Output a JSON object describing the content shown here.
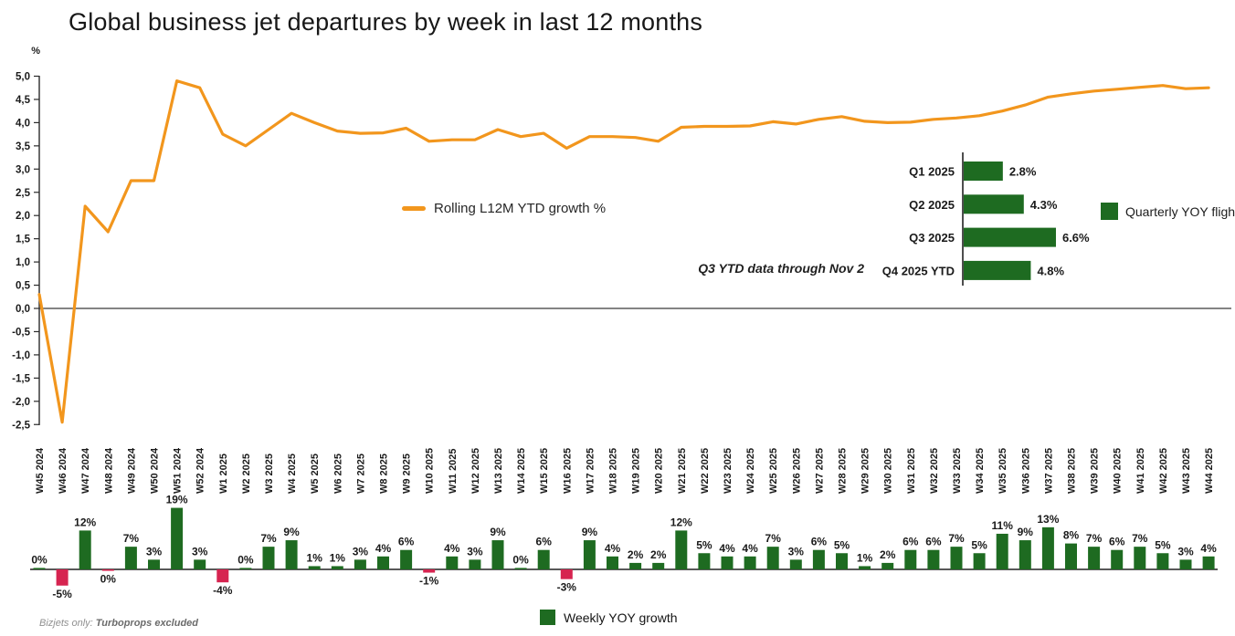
{
  "title": "Global business jet departures by week in last 12 months",
  "footer": {
    "prefix": "Bizjets only: ",
    "bold": "Turboprops excluded"
  },
  "colors": {
    "line_orange": "#F2961D",
    "bar_green": "#1E6B21",
    "bar_red": "#D62450",
    "axis": "#2a2a2a",
    "text": "#1a1a1a"
  },
  "chart_data": [
    {
      "type": "line",
      "title": "Global business jet departures by week in last 12 months",
      "legend": "Rolling L12M YTD growth %",
      "ylabel": "%",
      "ylim": [
        -2.5,
        5.0
      ],
      "ytick_step": 0.5,
      "ytick_labels": [
        "5,0",
        "4,5",
        "4,0",
        "3,5",
        "3,0",
        "2,5",
        "2,0",
        "1,5",
        "1,0",
        "0,5",
        "0,0",
        "-0,5",
        "-1,0",
        "-1,5",
        "-2,0",
        "-2,5"
      ],
      "grid": "zero-line-only",
      "x": [
        "W45 2024",
        "W46 2024",
        "W47 2024",
        "W48 2024",
        "W49 2024",
        "W50 2024",
        "W51 2024",
        "W52 2024",
        "W1 2025",
        "W2 2025",
        "W3 2025",
        "W4 2025",
        "W5 2025",
        "W6 2025",
        "W7 2025",
        "W8 2025",
        "W9 2025",
        "W10 2025",
        "W11 2025",
        "W12 2025",
        "W13 2025",
        "W14 2025",
        "W15 2025",
        "W16 2025",
        "W17 2025",
        "W18 2025",
        "W19 2025",
        "W20 2025",
        "W21 2025",
        "W22 2025",
        "W23 2025",
        "W24 2025",
        "W25 2025",
        "W26 2025",
        "W27 2025",
        "W28 2025",
        "W29 2025",
        "W30 2025",
        "W31 2025",
        "W32 2025",
        "W33 2025",
        "W34 2025",
        "W35 2025",
        "W36 2025",
        "W37 2025",
        "W38 2025",
        "W39 2025",
        "W40 2025",
        "W41 2025",
        "W42 2025",
        "W43 2025",
        "W44 2025"
      ],
      "values": [
        0.3,
        -2.45,
        2.2,
        1.65,
        2.75,
        2.75,
        4.9,
        4.75,
        3.75,
        3.5,
        3.85,
        4.2,
        4.0,
        3.82,
        3.77,
        3.78,
        3.88,
        3.6,
        3.63,
        3.63,
        3.85,
        3.7,
        3.77,
        3.45,
        3.7,
        3.7,
        3.68,
        3.6,
        3.9,
        3.92,
        3.92,
        3.93,
        4.02,
        3.97,
        4.07,
        4.13,
        4.03,
        4.0,
        4.01,
        4.07,
        4.1,
        4.15,
        4.25,
        4.38,
        4.55,
        4.62,
        4.68,
        4.72,
        4.76,
        4.8,
        4.73,
        4.75
      ]
    },
    {
      "type": "bar",
      "legend": "Weekly YOY growth",
      "x_note": "shares weekly x-axis with line chart above",
      "values": [
        0.1,
        -5,
        12,
        -0.15,
        7,
        3,
        19,
        3,
        -4,
        0.1,
        7,
        9,
        1,
        1,
        3,
        4,
        6,
        -1,
        4,
        3,
        9,
        0.1,
        6,
        -3,
        9,
        4,
        2,
        2,
        12,
        5,
        4,
        4,
        7,
        3,
        6,
        5,
        1,
        2,
        6,
        6,
        7,
        5,
        11,
        9,
        13,
        8,
        7,
        6,
        7,
        5,
        3,
        4
      ],
      "value_labels": [
        "0%",
        "-5%",
        "12%",
        "0%",
        "7%",
        "3%",
        "19%",
        "3%",
        "-4%",
        "0%",
        "7%",
        "9%",
        "1%",
        "1%",
        "3%",
        "4%",
        "6%",
        "-1%",
        "4%",
        "3%",
        "9%",
        "0%",
        "6%",
        "-3%",
        "9%",
        "4%",
        "2%",
        "2%",
        "12%",
        "5%",
        "4%",
        "4%",
        "7%",
        "3%",
        "6%",
        "5%",
        "1%",
        "2%",
        "6%",
        "6%",
        "7%",
        "5%",
        "11%",
        "9%",
        "13%",
        "8%",
        "7%",
        "6%",
        "7%",
        "5%",
        "3%",
        "4%"
      ]
    },
    {
      "type": "bar",
      "orientation": "horizontal",
      "legend": "Quarterly YOY flight",
      "note": "Q3 YTD data through Nov 2",
      "categories": [
        "Q1 2025",
        "Q2 2025",
        "Q3 2025",
        "Q4 2025 YTD"
      ],
      "values": [
        2.8,
        4.3,
        6.6,
        4.8
      ],
      "value_labels": [
        "2.8%",
        "4.3%",
        "6.6%",
        "4.8%"
      ]
    }
  ]
}
